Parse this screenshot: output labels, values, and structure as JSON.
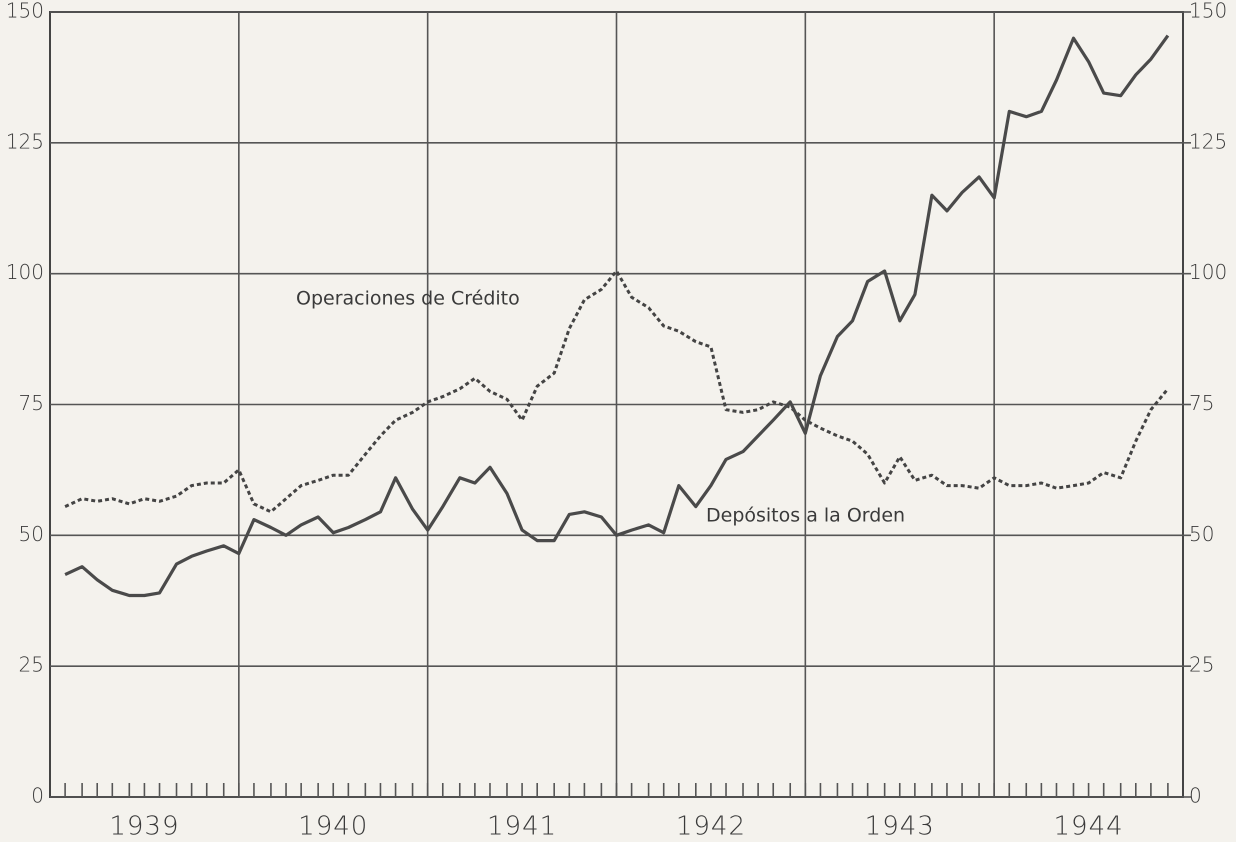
{
  "chart_data": {
    "type": "line",
    "x": [
      1939.08,
      1939.17,
      1939.25,
      1939.33,
      1939.42,
      1939.5,
      1939.58,
      1939.67,
      1939.75,
      1939.83,
      1939.92,
      1940.0,
      1940.08,
      1940.17,
      1940.25,
      1940.33,
      1940.42,
      1940.5,
      1940.58,
      1940.67,
      1940.75,
      1940.83,
      1940.92,
      1941.0,
      1941.08,
      1941.17,
      1941.25,
      1941.33,
      1941.42,
      1941.5,
      1941.58,
      1941.67,
      1941.75,
      1941.83,
      1941.92,
      1942.0,
      1942.08,
      1942.17,
      1942.25,
      1942.33,
      1942.42,
      1942.5,
      1942.58,
      1942.67,
      1942.75,
      1942.83,
      1942.92,
      1943.0,
      1943.08,
      1943.17,
      1943.25,
      1943.33,
      1943.42,
      1943.5,
      1943.58,
      1943.67,
      1943.75,
      1943.83,
      1943.92,
      1944.0,
      1944.08,
      1944.17,
      1944.25,
      1944.33,
      1944.42,
      1944.5,
      1944.58,
      1944.67,
      1944.75,
      1944.83,
      1944.92
    ],
    "series": [
      {
        "name": "Operaciones de Crédito",
        "color": "#444444",
        "dashed": true,
        "values": [
          55.5,
          57,
          56.5,
          57,
          56,
          57,
          56.5,
          57.5,
          59.5,
          60,
          60,
          62.5,
          56,
          54.5,
          57,
          59.5,
          60.5,
          61.5,
          61.5,
          65.5,
          69,
          72,
          73.5,
          75.5,
          76.5,
          78,
          80,
          77.5,
          76,
          72,
          78.5,
          81,
          89.5,
          95,
          97,
          100.5,
          95.5,
          93.5,
          90,
          89,
          87,
          86,
          74,
          73.5,
          74,
          75.5,
          74.5,
          72,
          70.5,
          69,
          68,
          65.5,
          60,
          65,
          60.5,
          61.5,
          59.5,
          59.5,
          59,
          61,
          59.5,
          59.5,
          60,
          59,
          59.5,
          60,
          62,
          61,
          68,
          74,
          78
        ]
      },
      {
        "name": "Depósitos a la Orden",
        "color": "#4a4a4a",
        "dashed": false,
        "values": [
          42.5,
          44,
          41.5,
          39.5,
          38.5,
          38.5,
          39,
          44.5,
          46,
          47,
          48,
          46.5,
          53,
          51.5,
          50,
          52,
          53.5,
          50.5,
          51.5,
          53,
          54.5,
          61,
          55,
          51,
          55.5,
          61,
          60,
          63,
          58,
          51,
          49,
          49,
          54,
          54.5,
          53.5,
          50,
          51,
          52,
          50.5,
          59.5,
          55.5,
          59.5,
          64.5,
          66,
          69,
          72,
          75.5,
          69.5,
          80.5,
          88,
          91,
          98.5,
          100.5,
          91,
          96,
          115,
          112,
          115.5,
          118.5,
          114.5,
          131,
          130,
          131,
          137,
          145,
          140.5,
          134.5,
          134,
          138,
          141,
          145.5
        ]
      }
    ],
    "xlim": [
      1939,
      1945
    ],
    "xticks": [
      {
        "value": 1939.5,
        "label": "1939"
      },
      {
        "value": 1940.5,
        "label": "1940"
      },
      {
        "value": 1941.5,
        "label": "1941"
      },
      {
        "value": 1942.5,
        "label": "1942"
      },
      {
        "value": 1943.5,
        "label": "1943"
      },
      {
        "value": 1944.5,
        "label": "1944"
      }
    ],
    "xgrid": [
      1940,
      1941,
      1942,
      1943,
      1944
    ],
    "ylim": [
      0,
      150
    ],
    "yticks": [
      0,
      25,
      50,
      75,
      100,
      125,
      150
    ],
    "y2lim": [
      0,
      150
    ],
    "y2ticks": [
      0,
      25,
      50,
      75,
      100,
      125,
      150
    ],
    "grid": true
  }
}
